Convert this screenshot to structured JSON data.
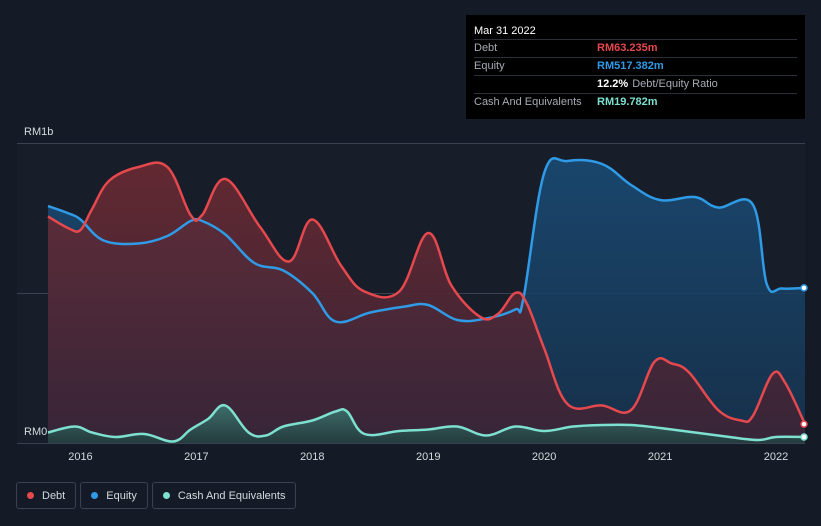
{
  "tooltip": {
    "date": "Mar 31 2022",
    "rows": [
      {
        "label": "Debt",
        "value": "RM63.235m",
        "color": "#e5484d"
      },
      {
        "label": "Equity",
        "value": "RM517.382m",
        "color": "#2f9be6"
      },
      {
        "label": "",
        "value": "12.2%",
        "suffix": "Debt/Equity Ratio",
        "color": "#ffffff"
      },
      {
        "label": "Cash And Equivalents",
        "value": "RM19.782m",
        "color": "#7de0d0"
      }
    ]
  },
  "chart_data": {
    "type": "area",
    "y_top_label": "RM1b",
    "y_bottom_label": "RM0",
    "ylim": [
      0,
      1000
    ],
    "xlim": [
      2015.72,
      2022.25
    ],
    "x_ticks": [
      "2016",
      "2017",
      "2018",
      "2019",
      "2020",
      "2021",
      "2022"
    ],
    "x_tick_values": [
      2016,
      2017,
      2018,
      2019,
      2020,
      2021,
      2022
    ],
    "series": [
      {
        "name": "Debt",
        "color": "#e5484d",
        "points": [
          [
            2015.72,
            755
          ],
          [
            2015.9,
            715
          ],
          [
            2016.0,
            710
          ],
          [
            2016.1,
            780
          ],
          [
            2016.25,
            875
          ],
          [
            2016.5,
            920
          ],
          [
            2016.75,
            920
          ],
          [
            2016.95,
            760
          ],
          [
            2017.05,
            760
          ],
          [
            2017.25,
            880
          ],
          [
            2017.55,
            720
          ],
          [
            2017.8,
            605
          ],
          [
            2018.0,
            745
          ],
          [
            2018.25,
            590
          ],
          [
            2018.45,
            505
          ],
          [
            2018.75,
            505
          ],
          [
            2019.0,
            700
          ],
          [
            2019.2,
            525
          ],
          [
            2019.45,
            420
          ],
          [
            2019.6,
            430
          ],
          [
            2019.75,
            500
          ],
          [
            2019.85,
            465
          ],
          [
            2020.0,
            315
          ],
          [
            2020.2,
            130
          ],
          [
            2020.5,
            125
          ],
          [
            2020.75,
            110
          ],
          [
            2020.95,
            270
          ],
          [
            2021.1,
            265
          ],
          [
            2021.25,
            235
          ],
          [
            2021.5,
            110
          ],
          [
            2021.7,
            75
          ],
          [
            2021.8,
            90
          ],
          [
            2021.97,
            230
          ],
          [
            2022.08,
            200
          ],
          [
            2022.25,
            63
          ]
        ]
      },
      {
        "name": "Equity",
        "color": "#2f9be6",
        "points": [
          [
            2015.72,
            790
          ],
          [
            2015.9,
            765
          ],
          [
            2016.0,
            745
          ],
          [
            2016.2,
            675
          ],
          [
            2016.5,
            665
          ],
          [
            2016.75,
            690
          ],
          [
            2016.95,
            740
          ],
          [
            2017.05,
            740
          ],
          [
            2017.25,
            695
          ],
          [
            2017.5,
            600
          ],
          [
            2017.75,
            575
          ],
          [
            2018.0,
            500
          ],
          [
            2018.2,
            405
          ],
          [
            2018.5,
            435
          ],
          [
            2018.8,
            455
          ],
          [
            2019.0,
            460
          ],
          [
            2019.25,
            410
          ],
          [
            2019.5,
            415
          ],
          [
            2019.75,
            445
          ],
          [
            2019.82,
            480
          ],
          [
            2020.0,
            900
          ],
          [
            2020.2,
            940
          ],
          [
            2020.5,
            930
          ],
          [
            2020.75,
            860
          ],
          [
            2021.0,
            810
          ],
          [
            2021.3,
            820
          ],
          [
            2021.5,
            785
          ],
          [
            2021.8,
            795
          ],
          [
            2021.92,
            530
          ],
          [
            2022.05,
            515
          ],
          [
            2022.25,
            517
          ]
        ]
      },
      {
        "name": "Cash And Equivalents",
        "color": "#7de0d0",
        "points": [
          [
            2015.72,
            35
          ],
          [
            2015.95,
            55
          ],
          [
            2016.1,
            35
          ],
          [
            2016.3,
            20
          ],
          [
            2016.55,
            30
          ],
          [
            2016.8,
            5
          ],
          [
            2016.95,
            45
          ],
          [
            2017.1,
            80
          ],
          [
            2017.25,
            125
          ],
          [
            2017.45,
            35
          ],
          [
            2017.6,
            25
          ],
          [
            2017.75,
            55
          ],
          [
            2018.0,
            75
          ],
          [
            2018.2,
            105
          ],
          [
            2018.3,
            105
          ],
          [
            2018.45,
            30
          ],
          [
            2018.75,
            40
          ],
          [
            2019.0,
            45
          ],
          [
            2019.25,
            55
          ],
          [
            2019.5,
            25
          ],
          [
            2019.75,
            55
          ],
          [
            2020.0,
            40
          ],
          [
            2020.25,
            55
          ],
          [
            2020.5,
            60
          ],
          [
            2020.75,
            60
          ],
          [
            2021.0,
            50
          ],
          [
            2021.3,
            35
          ],
          [
            2021.6,
            20
          ],
          [
            2021.85,
            10
          ],
          [
            2022.0,
            20
          ],
          [
            2022.25,
            20
          ]
        ]
      }
    ],
    "legend": [
      {
        "label": "Debt",
        "color": "#e5484d"
      },
      {
        "label": "Equity",
        "color": "#2f9be6"
      },
      {
        "label": "Cash And Equivalents",
        "color": "#7de0d0"
      }
    ]
  }
}
